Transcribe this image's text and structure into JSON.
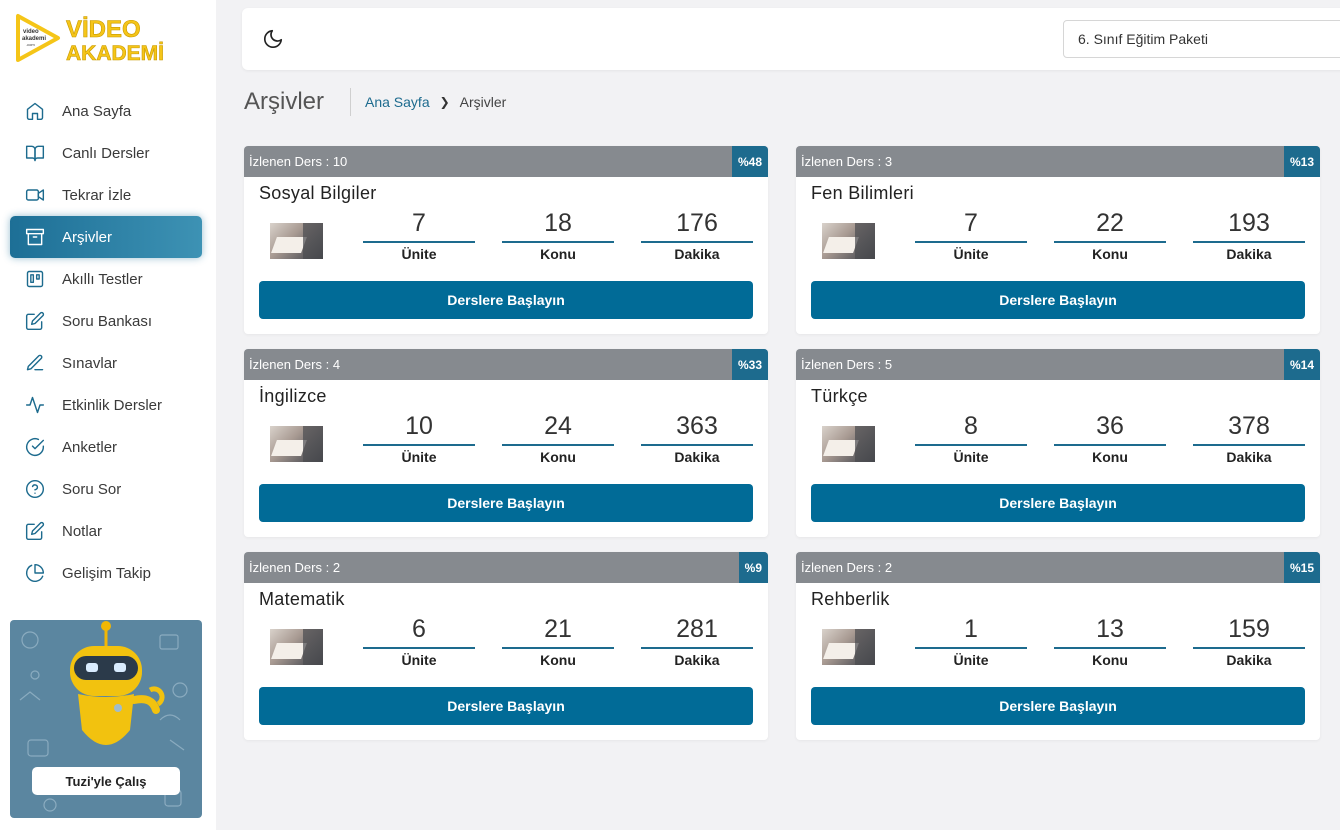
{
  "logo": {
    "text_top": "VİDEO",
    "text_bottom": "AKADEMİ",
    "small": "video akademi .com"
  },
  "sidebar": {
    "items": [
      {
        "label": "Ana Sayfa",
        "icon": "home-icon",
        "active": false
      },
      {
        "label": "Canlı Dersler",
        "icon": "book-open-icon",
        "active": false
      },
      {
        "label": "Tekrar İzle",
        "icon": "video-camera-icon",
        "active": false
      },
      {
        "label": "Arşivler",
        "icon": "archive-icon",
        "active": true
      },
      {
        "label": "Akıllı Testler",
        "icon": "trello-icon",
        "active": false
      },
      {
        "label": "Soru Bankası",
        "icon": "edit-icon",
        "active": false
      },
      {
        "label": "Sınavlar",
        "icon": "pen-icon",
        "active": false
      },
      {
        "label": "Etkinlik Dersler",
        "icon": "activity-icon",
        "active": false
      },
      {
        "label": "Anketler",
        "icon": "check-circle-icon",
        "active": false
      },
      {
        "label": "Soru Sor",
        "icon": "help-circle-icon",
        "active": false
      },
      {
        "label": "Notlar",
        "icon": "edit-icon",
        "active": false
      },
      {
        "label": "Gelişim Takip",
        "icon": "pie-chart-icon",
        "active": false
      }
    ],
    "promo_button": "Tuzi'yle Çalış"
  },
  "topbar": {
    "package": "6. Sınıf Eğitim Paketi"
  },
  "page": {
    "title": "Arşivler",
    "breadcrumb": {
      "home": "Ana Sayfa",
      "current": "Arşivler"
    }
  },
  "labels": {
    "unit": "Ünite",
    "topic": "Konu",
    "minute": "Dakika",
    "start": "Derslere Başlayın"
  },
  "courses": [
    {
      "watched": "İzlenen Ders : 10",
      "percent": "%48",
      "name": "Sosyal Bilgiler",
      "units": "7",
      "topics": "18",
      "minutes": "176",
      "start": "Derslere Başlayın"
    },
    {
      "watched": "İzlenen Ders : 3",
      "percent": "%13",
      "name": "Fen Bilimleri",
      "units": "7",
      "topics": "22",
      "minutes": "193",
      "start": "Derslere Başlayın"
    },
    {
      "watched": "İzlenen Ders : 4",
      "percent": "%33",
      "name": "İngilizce",
      "units": "10",
      "topics": "24",
      "minutes": "363",
      "start": "Derslere Başlayın"
    },
    {
      "watched": "İzlenen Ders : 5",
      "percent": "%14",
      "name": "Türkçe",
      "units": "8",
      "topics": "36",
      "minutes": "378",
      "start": "Derslere Başlayın"
    },
    {
      "watched": "İzlenen Ders : 2",
      "percent": "%9",
      "name": "Matematik",
      "units": "6",
      "topics": "21",
      "minutes": "281",
      "start": "Derslere Başlayın"
    },
    {
      "watched": "İzlenen Ders : 2",
      "percent": "%15",
      "name": "Rehberlik",
      "units": "1",
      "topics": "13",
      "minutes": "159",
      "start": "Derslere Başlayın"
    }
  ],
  "colors": {
    "primary": "#016b97",
    "header_gray": "#868a8f",
    "logo_yellow": "#f5c518"
  }
}
